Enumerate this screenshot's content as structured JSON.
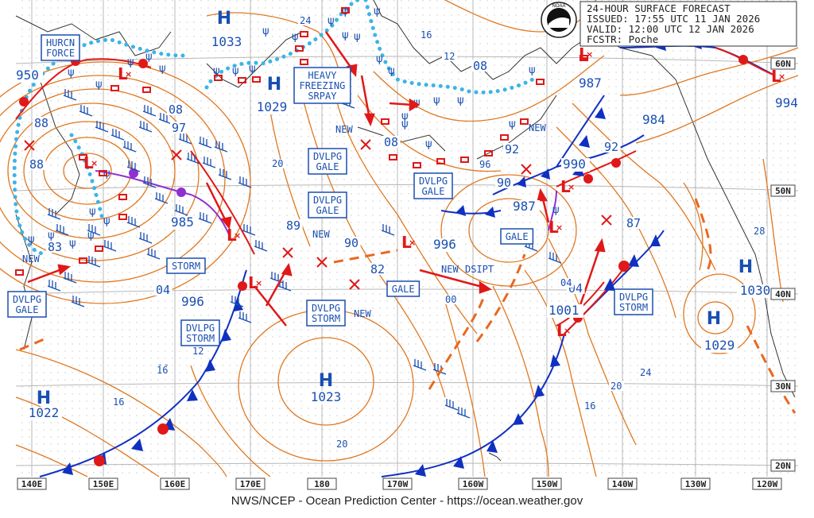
{
  "header": {
    "line1": "24-HOUR SURFACE FORECAST",
    "line2": "ISSUED: 17:55 UTC 11 JAN 2026",
    "line3": "VALID:  12:00 UTC 12 JAN 2026",
    "line4": "FCSTR:  Poche",
    "logo_text": "NOAA"
  },
  "footer": "NWS/NCEP - Ocean Prediction Center - https://ocean.weather.gov",
  "colors": {
    "isobar": "#e07820",
    "text_blue": "#1a4fb0",
    "cold_front": "#1030c0",
    "warm_front": "#e01818",
    "occluded": "#9030d0",
    "ice": "#3cb4e6",
    "coast": "#333333",
    "grid": "#b8b8b8"
  },
  "longitude_labels": [
    "140E",
    "150E",
    "160E",
    "170E",
    "180",
    "170W",
    "160W",
    "150W",
    "140W",
    "130W",
    "120W"
  ],
  "latitude_labels": [
    "60N",
    "50N",
    "40N",
    "30N",
    "20N"
  ],
  "highs": [
    {
      "label": "H",
      "value": "1033"
    },
    {
      "label": "H",
      "value": "1029"
    },
    {
      "label": "H",
      "value": "1023"
    },
    {
      "label": "H",
      "value": "1022"
    },
    {
      "label": "H",
      "value": "1030"
    },
    {
      "label": "H",
      "value": "1029"
    }
  ],
  "lows": [
    {
      "value": "950"
    },
    {
      "value": "985"
    },
    {
      "value": "996"
    },
    {
      "value": "987"
    },
    {
      "value": "984"
    },
    {
      "value": "994"
    },
    {
      "value": "990"
    },
    {
      "value": "987"
    },
    {
      "value": "1001"
    },
    {
      "value": "996"
    }
  ],
  "warning_boxes": [
    {
      "text": [
        "HURCN",
        "FORCE"
      ]
    },
    {
      "text": [
        "HEAVY",
        "FREEZING",
        "SRPAY"
      ]
    },
    {
      "text": [
        "DVLPG",
        "GALE"
      ]
    },
    {
      "text": [
        "DVLPG",
        "GALE"
      ]
    },
    {
      "text": [
        "DVLPG",
        "GALE"
      ]
    },
    {
      "text": [
        "STORM"
      ]
    },
    {
      "text": [
        "DVLPG",
        "STORM"
      ]
    },
    {
      "text": [
        "DVLPG",
        "STORM"
      ]
    },
    {
      "text": [
        "DVLPG",
        "GALE"
      ]
    },
    {
      "text": [
        "GALE"
      ]
    },
    {
      "text": [
        "GALE"
      ]
    },
    {
      "text": [
        "DVLPG",
        "STORM"
      ]
    }
  ],
  "annotations": [
    "NEW",
    "NEW",
    "NEW",
    "NEW",
    "NEW",
    "NEW",
    "DSIPT"
  ],
  "isobar_labels": [
    "08",
    "97",
    "88",
    "88",
    "83",
    "04",
    "12",
    "16",
    "20",
    "20",
    "24",
    "16",
    "12",
    "08",
    "08",
    "96",
    "92",
    "90",
    "92",
    "89",
    "90",
    "82",
    "00",
    "04",
    "24",
    "20",
    "16",
    "28",
    "87",
    "20",
    "04",
    "16",
    "12",
    "16",
    "20"
  ]
}
